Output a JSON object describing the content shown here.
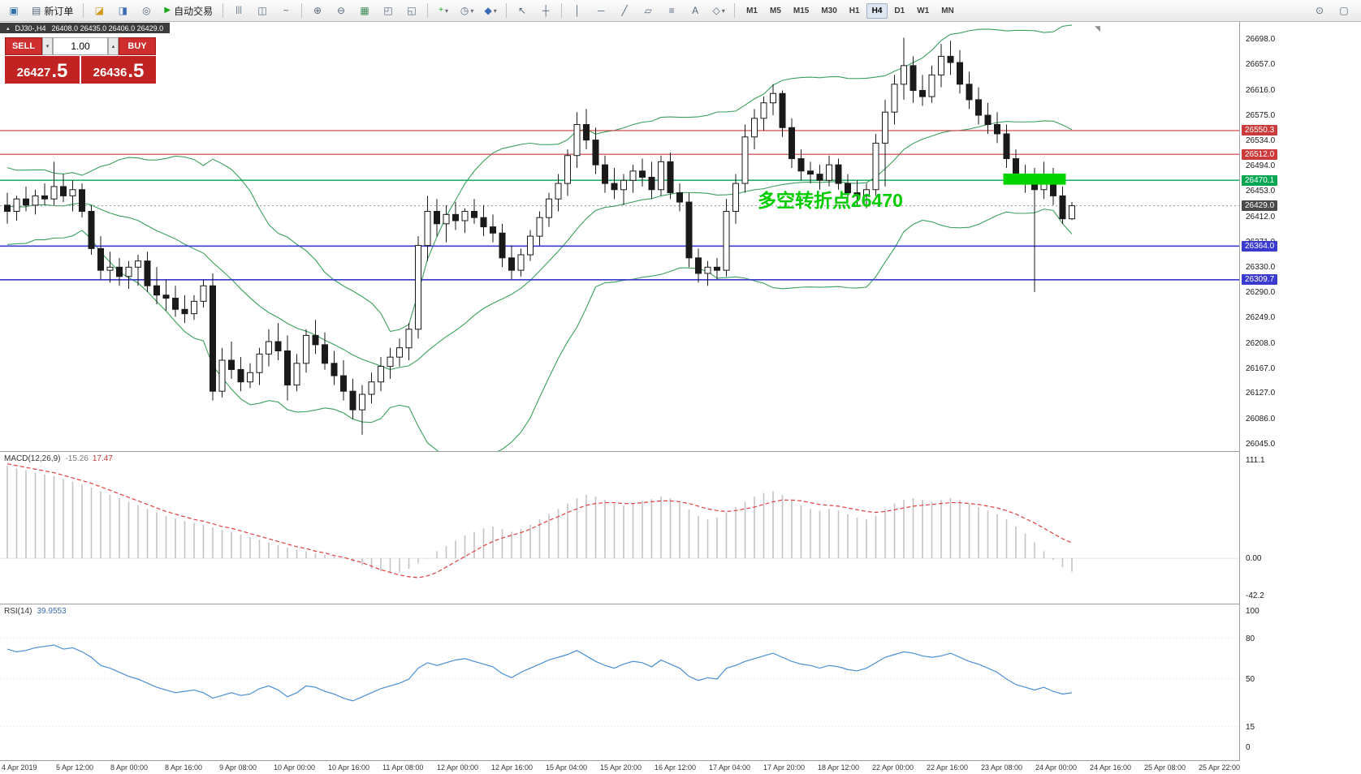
{
  "toolbar": {
    "new_order": "新订单",
    "auto_trading": "自动交易",
    "timeframes": [
      "M1",
      "M5",
      "M15",
      "M30",
      "H1",
      "H4",
      "D1",
      "W1",
      "MN"
    ],
    "active_timeframe": "H4"
  },
  "icons": {
    "title_caret": "▴",
    "new_chart": "▣",
    "new_order_doc": "▤",
    "market_watch": "◪",
    "data_window": "◨",
    "navigator": "◎",
    "autotrading_play": "▶",
    "chart_bars": "|||",
    "chart_candles": "◫",
    "chart_line": "~",
    "zoom_in": "⊕",
    "zoom_out": "⊖",
    "grid": "▦",
    "tile_windows": "◰",
    "cascade_windows": "◱",
    "indicators_plus": "+",
    "periods_clock": "◷",
    "templates": "◆",
    "cursor": "↖",
    "crosshair": "┼",
    "vline": "│",
    "hline": "─",
    "trendline": "╱",
    "channel": "▱",
    "fibonacci": "≡",
    "text_tool": "A",
    "shapes": "◇",
    "caret_down": "▾",
    "spin_down": "▾",
    "spin_up": "▴",
    "search": "⊙",
    "page": "▢",
    "shift_marker": "◥"
  },
  "chart_header": {
    "title": "DJ30-,H4",
    "ohlc": "26408.0 26435.0 26406.0 26429.0"
  },
  "trade_panel": {
    "sell_label": "SELL",
    "buy_label": "BUY",
    "volume": "1.00",
    "sell_price_main": "26427",
    "sell_price_pips": ".5",
    "buy_price_main": "26436",
    "buy_price_pips": ".5"
  },
  "annotation": {
    "text": "多空转折点26470",
    "color": "#00cc00"
  },
  "levels": [
    {
      "label": "26550.3",
      "value": 26550.3,
      "color": "#cc3b3b",
      "width": 1.1
    },
    {
      "label": "26512.0",
      "value": 26512.0,
      "color": "#cc3b3b",
      "width": 1.1
    },
    {
      "label": "26470.1",
      "value": 26470.1,
      "color": "#00a651",
      "width": 1.3
    },
    {
      "label": "26364.0",
      "value": 26364.0,
      "color": "#3a3ace",
      "width": 1.6
    },
    {
      "label": "26309.7",
      "value": 26309.7,
      "color": "#3a3ace",
      "width": 1.6
    }
  ],
  "current_price": {
    "label": "26429.0",
    "value": 26429.0,
    "line_color": "#9a9a9a",
    "tag_color": "#4a4a4a"
  },
  "highlight_box": {
    "from_index": 107,
    "to_index": 113,
    "price_top": 26481,
    "price_bottom": 26463,
    "color": "#00d400"
  },
  "chart_data": {
    "type": "candlestick",
    "symbol": "DJ30-",
    "timeframe": "H4",
    "y_range": [
      26045,
      26698
    ],
    "y_ticks": [
      "26698.0",
      "26657.0",
      "26616.0",
      "26575.0",
      "26534.0",
      "26494.0",
      "26453.0",
      "26412.0",
      "26371.0",
      "26330.0",
      "26290.0",
      "26249.0",
      "26208.0",
      "26167.0",
      "26127.0",
      "26086.0",
      "26045.0"
    ],
    "x_labels": [
      "4 Apr 2019",
      "5 Apr 12:00",
      "8 Apr 00:00",
      "8 Apr 16:00",
      "9 Apr 08:00",
      "10 Apr 00:00",
      "10 Apr 16:00",
      "11 Apr 08:00",
      "12 Apr 00:00",
      "12 Apr 16:00",
      "15 Apr 04:00",
      "15 Apr 20:00",
      "16 Apr 12:00",
      "17 Apr 04:00",
      "17 Apr 20:00",
      "18 Apr 12:00",
      "22 Apr 00:00",
      "22 Apr 16:00",
      "23 Apr 08:00",
      "24 Apr 00:00",
      "24 Apr 16:00",
      "25 Apr 08:00",
      "25 Apr 22:00"
    ],
    "candles": [
      [
        26430,
        26450,
        26400,
        26420
      ],
      [
        26420,
        26445,
        26405,
        26440
      ],
      [
        26440,
        26460,
        26420,
        26430
      ],
      [
        26430,
        26455,
        26415,
        26445
      ],
      [
        26445,
        26465,
        26430,
        26440
      ],
      [
        26440,
        26500,
        26430,
        26460
      ],
      [
        26460,
        26480,
        26435,
        26445
      ],
      [
        26445,
        26470,
        26420,
        26455
      ],
      [
        26455,
        26465,
        26410,
        26420
      ],
      [
        26420,
        26430,
        26350,
        26360
      ],
      [
        26360,
        26380,
        26310,
        26325
      ],
      [
        26325,
        26355,
        26305,
        26330
      ],
      [
        26330,
        26345,
        26300,
        26315
      ],
      [
        26315,
        26340,
        26295,
        26330
      ],
      [
        26330,
        26350,
        26300,
        26340
      ],
      [
        26340,
        26355,
        26290,
        26300
      ],
      [
        26300,
        26330,
        26270,
        26285
      ],
      [
        26285,
        26310,
        26260,
        26280
      ],
      [
        26280,
        26300,
        26250,
        26262
      ],
      [
        26262,
        26285,
        26240,
        26255
      ],
      [
        26255,
        26285,
        26245,
        26275
      ],
      [
        26275,
        26310,
        26265,
        26300
      ],
      [
        26300,
        26320,
        26115,
        26130
      ],
      [
        26130,
        26200,
        26120,
        26180
      ],
      [
        26180,
        26210,
        26150,
        26165
      ],
      [
        26165,
        26185,
        26130,
        26145
      ],
      [
        26145,
        26175,
        26135,
        26160
      ],
      [
        26160,
        26200,
        26140,
        26190
      ],
      [
        26190,
        26230,
        26170,
        26210
      ],
      [
        26210,
        26240,
        26180,
        26195
      ],
      [
        26195,
        26220,
        26115,
        26140
      ],
      [
        26140,
        26190,
        26130,
        26175
      ],
      [
        26175,
        26230,
        26160,
        26220
      ],
      [
        26220,
        26245,
        26190,
        26205
      ],
      [
        26205,
        26225,
        26165,
        26175
      ],
      [
        26175,
        26195,
        26140,
        26155
      ],
      [
        26155,
        26180,
        26115,
        26130
      ],
      [
        26130,
        26150,
        26085,
        26100
      ],
      [
        26100,
        26140,
        26060,
        26125
      ],
      [
        26125,
        26160,
        26110,
        26145
      ],
      [
        26145,
        26185,
        26130,
        26170
      ],
      [
        26170,
        26200,
        26150,
        26185
      ],
      [
        26185,
        26215,
        26170,
        26200
      ],
      [
        26200,
        26240,
        26180,
        26230
      ],
      [
        26230,
        26380,
        26215,
        26365
      ],
      [
        26365,
        26445,
        26340,
        26420
      ],
      [
        26420,
        26440,
        26380,
        26400
      ],
      [
        26400,
        26430,
        26370,
        26415
      ],
      [
        26415,
        26435,
        26390,
        26405
      ],
      [
        26405,
        26425,
        26385,
        26420
      ],
      [
        26420,
        26440,
        26400,
        26410
      ],
      [
        26410,
        26430,
        26380,
        26395
      ],
      [
        26395,
        26415,
        26370,
        26385
      ],
      [
        26385,
        26400,
        26330,
        26345
      ],
      [
        26345,
        26365,
        26310,
        26325
      ],
      [
        26325,
        26360,
        26315,
        26350
      ],
      [
        26350,
        26390,
        26340,
        26380
      ],
      [
        26380,
        26420,
        26365,
        26410
      ],
      [
        26410,
        26450,
        26395,
        26440
      ],
      [
        26440,
        26480,
        26420,
        26465
      ],
      [
        26465,
        26520,
        26445,
        26510
      ],
      [
        26510,
        26580,
        26490,
        26560
      ],
      [
        26560,
        26585,
        26520,
        26535
      ],
      [
        26535,
        26555,
        26480,
        26495
      ],
      [
        26495,
        26510,
        26450,
        26465
      ],
      [
        26465,
        26490,
        26440,
        26455
      ],
      [
        26455,
        26480,
        26430,
        26470
      ],
      [
        26470,
        26495,
        26450,
        26485
      ],
      [
        26485,
        26505,
        26460,
        26475
      ],
      [
        26475,
        26500,
        26440,
        26455
      ],
      [
        26455,
        26510,
        26445,
        26500
      ],
      [
        26500,
        26515,
        26440,
        26450
      ],
      [
        26450,
        26465,
        26420,
        26435
      ],
      [
        26435,
        26450,
        26330,
        26345
      ],
      [
        26345,
        26360,
        26305,
        26320
      ],
      [
        26320,
        26340,
        26300,
        26330
      ],
      [
        26330,
        26345,
        26310,
        26325
      ],
      [
        26325,
        26440,
        26315,
        26420
      ],
      [
        26420,
        26480,
        26400,
        26465
      ],
      [
        26465,
        26560,
        26450,
        26540
      ],
      [
        26540,
        26585,
        26520,
        26570
      ],
      [
        26570,
        26605,
        26550,
        26595
      ],
      [
        26595,
        26625,
        26575,
        26610
      ],
      [
        26610,
        26615,
        26540,
        26555
      ],
      [
        26555,
        26570,
        26490,
        26505
      ],
      [
        26505,
        26520,
        26470,
        26485
      ],
      [
        26485,
        26500,
        26465,
        26480
      ],
      [
        26480,
        26495,
        26455,
        26470
      ],
      [
        26470,
        26510,
        26460,
        26495
      ],
      [
        26495,
        26505,
        26455,
        26465
      ],
      [
        26465,
        26480,
        26440,
        26450
      ],
      [
        26450,
        26470,
        26430,
        26445
      ],
      [
        26445,
        26465,
        26425,
        26455
      ],
      [
        26455,
        26545,
        26445,
        26530
      ],
      [
        26530,
        26600,
        26460,
        26580
      ],
      [
        26580,
        26640,
        26560,
        26625
      ],
      [
        26625,
        26700,
        26600,
        26655
      ],
      [
        26655,
        26670,
        26595,
        26615
      ],
      [
        26615,
        26640,
        26590,
        26605
      ],
      [
        26605,
        26655,
        26595,
        26640
      ],
      [
        26640,
        26690,
        26620,
        26670
      ],
      [
        26670,
        26695,
        26640,
        26660
      ],
      [
        26660,
        26680,
        26610,
        26625
      ],
      [
        26625,
        26645,
        26585,
        26600
      ],
      [
        26600,
        26620,
        26560,
        26575
      ],
      [
        26575,
        26595,
        26545,
        26560
      ],
      [
        26560,
        26580,
        26530,
        26545
      ],
      [
        26545,
        26560,
        26490,
        26505
      ],
      [
        26505,
        26520,
        26465,
        26480
      ],
      [
        26480,
        26495,
        26450,
        26465
      ],
      [
        26465,
        26490,
        26290,
        26455
      ],
      [
        26455,
        26500,
        26440,
        26475
      ],
      [
        26475,
        26490,
        26430,
        26445
      ],
      [
        26445,
        26460,
        26400,
        26408
      ],
      [
        26408,
        26435,
        26406,
        26429
      ]
    ],
    "bollinger": {
      "period": 20,
      "deviation": 2,
      "color": "#3ba05c",
      "seed_closes": [
        26500,
        26470,
        26420,
        26385,
        26440,
        26485,
        26455,
        26400,
        26375,
        26430,
        26465,
        26450,
        26405,
        26385,
        26435,
        26470,
        26445,
        26410,
        26395,
        26430
      ]
    },
    "macd": {
      "name": "MACD(12,26,9)",
      "value": "-15.26",
      "signal": "17.47",
      "hist_color": "#c4c4c4",
      "signal_color": "#e04040",
      "axis_labels": [
        "111.1",
        "0.00",
        "-42.2"
      ],
      "axis_values": [
        111.1,
        0,
        -42.2
      ],
      "histogram": [
        105,
        102,
        100,
        97,
        95,
        93,
        90,
        87,
        84,
        80,
        76,
        72,
        68,
        64,
        60,
        56,
        52,
        48,
        45,
        42,
        40,
        38,
        35,
        32,
        30,
        27,
        24,
        21,
        18,
        15,
        12,
        10,
        8,
        6,
        4,
        2,
        0,
        -4,
        -8,
        -12,
        -15,
        -17,
        -16,
        -12,
        -6,
        0,
        8,
        14,
        20,
        26,
        30,
        34,
        36,
        33,
        30,
        33,
        38,
        44,
        50,
        56,
        62,
        68,
        72,
        70,
        66,
        62,
        60,
        62,
        65,
        67,
        70,
        68,
        63,
        55,
        48,
        44,
        46,
        52,
        58,
        64,
        70,
        74,
        76,
        72,
        66,
        60,
        56,
        54,
        56,
        54,
        50,
        46,
        44,
        48,
        56,
        62,
        66,
        68,
        66,
        64,
        66,
        68,
        66,
        62,
        58,
        54,
        50,
        44,
        36,
        28,
        18,
        8,
        -2,
        -10,
        -15.26
      ],
      "signal_line": [
        107,
        105,
        103,
        101,
        99,
        97,
        94,
        91,
        88,
        85,
        81,
        77,
        73,
        69,
        65,
        61,
        57,
        53,
        50,
        47,
        44,
        42,
        39,
        36,
        34,
        31,
        28,
        25,
        22,
        19,
        16,
        13,
        11,
        8,
        6,
        3,
        1,
        -2,
        -5,
        -9,
        -13,
        -16,
        -19,
        -21,
        -22,
        -20,
        -16,
        -10,
        -4,
        2,
        8,
        14,
        19,
        23,
        26,
        29,
        33,
        38,
        43,
        47,
        52,
        56,
        60,
        62,
        63,
        63,
        62,
        62,
        63,
        64,
        65,
        65,
        64,
        62,
        59,
        56,
        54,
        53,
        54,
        56,
        58,
        61,
        64,
        66,
        66,
        65,
        63,
        61,
        60,
        59,
        57,
        55,
        53,
        52,
        53,
        55,
        57,
        59,
        60,
        61,
        62,
        63,
        63,
        62,
        61,
        59,
        57,
        54,
        50,
        45,
        40,
        34,
        28,
        22,
        17.47
      ]
    },
    "rsi": {
      "name": "RSI(14)",
      "value": "39.9553",
      "line_color": "#4a8fd4",
      "axis_labels": [
        "100",
        "80",
        "50",
        "15",
        "0"
      ],
      "axis_values": [
        100,
        80,
        50,
        15,
        0
      ],
      "levels": [
        80,
        50,
        15
      ],
      "values": [
        72,
        70,
        71,
        73,
        74,
        75,
        72,
        73,
        70,
        66,
        60,
        58,
        55,
        52,
        50,
        47,
        44,
        42,
        40,
        41,
        42,
        40,
        36,
        38,
        40,
        38,
        39,
        43,
        45,
        42,
        37,
        40,
        45,
        44,
        41,
        39,
        36,
        34,
        37,
        40,
        43,
        45,
        47,
        50,
        58,
        62,
        60,
        62,
        64,
        65,
        63,
        61,
        59,
        54,
        51,
        55,
        58,
        61,
        64,
        66,
        68,
        71,
        67,
        63,
        60,
        58,
        61,
        63,
        62,
        59,
        64,
        61,
        58,
        52,
        49,
        51,
        50,
        58,
        60,
        63,
        65,
        67,
        69,
        66,
        63,
        61,
        60,
        58,
        60,
        59,
        57,
        56,
        58,
        62,
        66,
        68,
        70,
        69,
        67,
        66,
        67,
        69,
        66,
        63,
        61,
        58,
        55,
        50,
        46,
        44,
        42,
        44,
        41,
        39,
        39.96
      ]
    }
  }
}
